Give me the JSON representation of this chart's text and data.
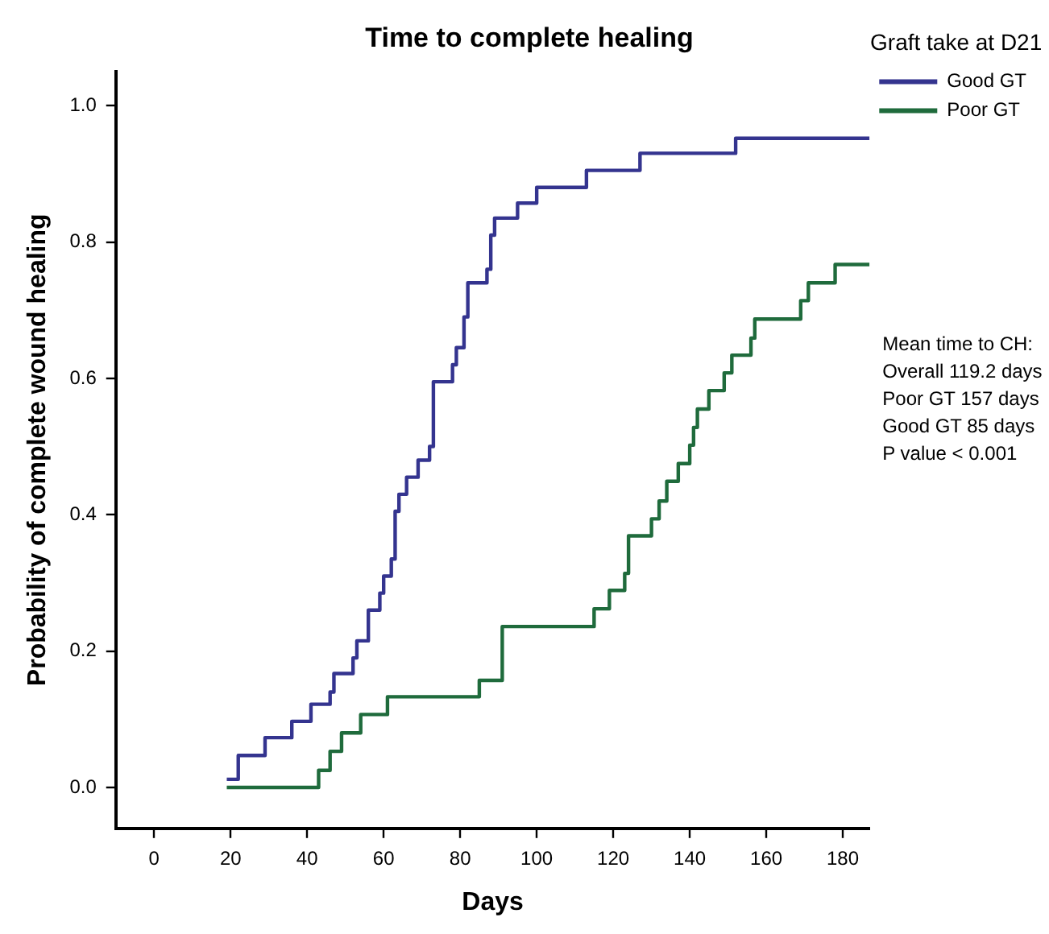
{
  "chart_data": {
    "type": "step",
    "title": "Time to complete healing",
    "xlabel": "Days",
    "ylabel": "Probability of complete wound healing",
    "legend_title": "Graft take at D21",
    "legend": "right",
    "grid": false,
    "marker": "none",
    "line_style": "solid",
    "xlim": [
      -10,
      187
    ],
    "xticks": [
      0,
      20,
      40,
      60,
      80,
      100,
      120,
      140,
      160,
      180
    ],
    "ylim": [
      -0.06,
      1.05
    ],
    "yticks": [
      {
        "value": 0,
        "label": "0.0"
      },
      {
        "value": 0.2,
        "label": "0.2"
      },
      {
        "value": 0.4,
        "label": "0.4"
      },
      {
        "value": 0.6,
        "label": "0.6"
      },
      {
        "value": 0.8,
        "label": "0.8"
      },
      {
        "value": 1,
        "label": "1.0"
      }
    ],
    "series": [
      {
        "name": "Good GT",
        "color": "#34348f",
        "x": [
          19,
          22,
          29,
          36,
          41,
          46,
          47,
          52,
          53,
          56,
          59,
          60,
          62,
          63,
          64,
          66,
          69,
          72,
          73,
          78,
          79,
          81,
          82,
          87,
          88,
          89,
          95,
          100,
          113,
          127,
          152,
          187
        ],
        "values": [
          0.012,
          0.047,
          0.073,
          0.097,
          0.122,
          0.14,
          0.167,
          0.19,
          0.215,
          0.26,
          0.285,
          0.31,
          0.335,
          0.405,
          0.43,
          0.455,
          0.48,
          0.5,
          0.595,
          0.62,
          0.645,
          0.69,
          0.74,
          0.76,
          0.81,
          0.835,
          0.857,
          0.88,
          0.905,
          0.93,
          0.952,
          0.952
        ]
      },
      {
        "name": "Poor GT",
        "color": "#1f6b3c",
        "x": [
          19,
          43,
          46,
          49,
          54,
          61,
          85,
          91,
          115,
          119,
          123,
          124,
          130,
          132,
          134,
          137,
          140,
          141,
          142,
          145,
          149,
          151,
          156,
          157,
          169,
          171,
          178,
          187
        ],
        "values": [
          0,
          0.025,
          0.053,
          0.08,
          0.107,
          0.133,
          0.157,
          0.236,
          0.262,
          0.289,
          0.314,
          0.369,
          0.394,
          0.42,
          0.449,
          0.475,
          0.502,
          0.528,
          0.555,
          0.582,
          0.608,
          0.634,
          0.659,
          0.687,
          0.714,
          0.74,
          0.767,
          0.767
        ]
      }
    ],
    "annotations": [
      "Mean time to CH:",
      "Overall 119.2 days",
      "Poor GT 157 days",
      "Good GT 85 days",
      "P value < 0.001"
    ]
  }
}
